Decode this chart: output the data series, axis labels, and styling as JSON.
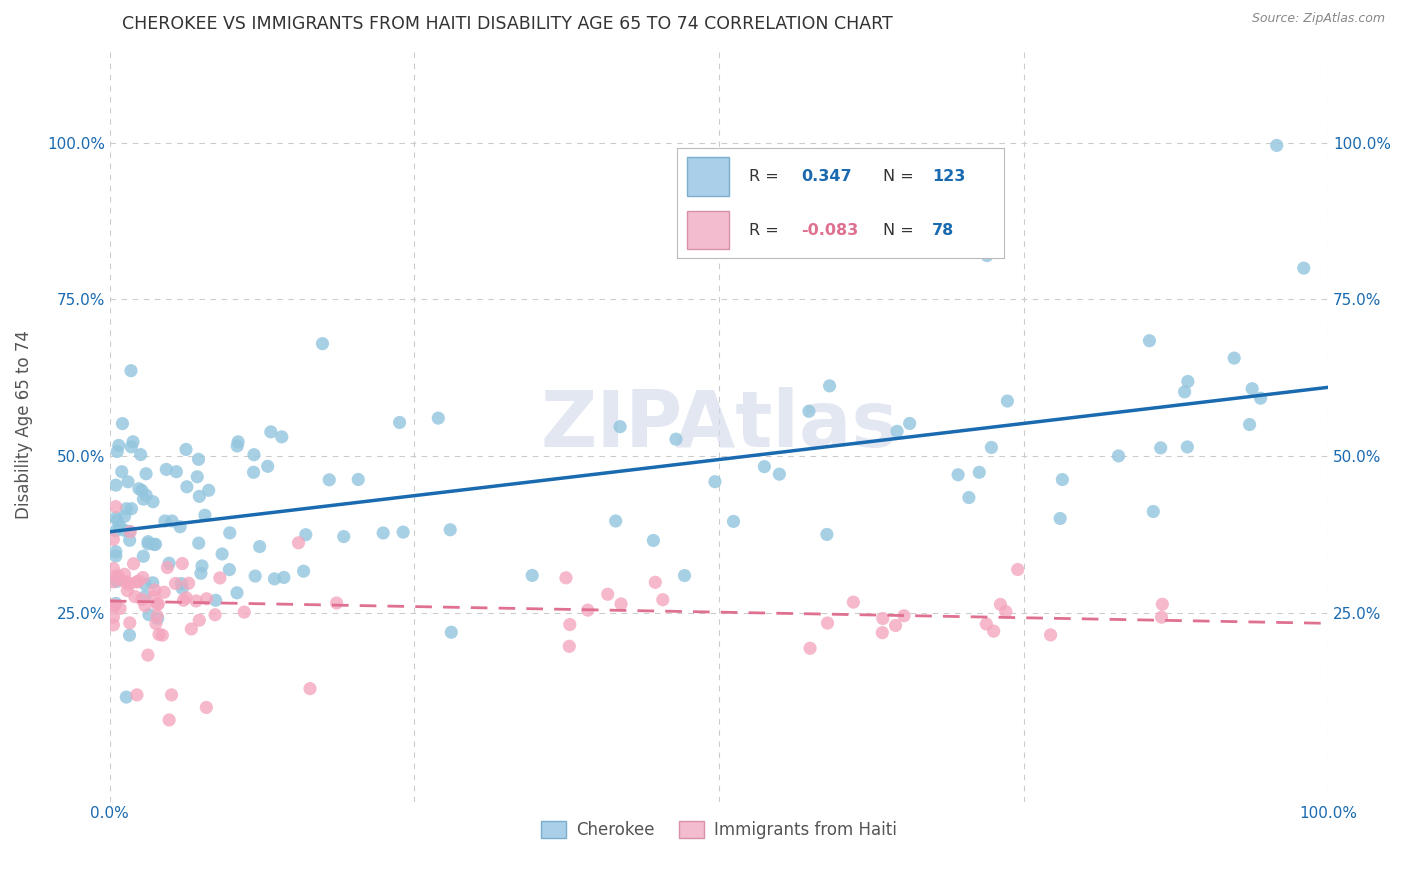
{
  "title": "CHEROKEE VS IMMIGRANTS FROM HAITI DISABILITY AGE 65 TO 74 CORRELATION CHART",
  "source": "Source: ZipAtlas.com",
  "ylabel": "Disability Age 65 to 74",
  "watermark": "ZIPAtlas",
  "cherokee_color": "#92c5de",
  "cherokee_line_color": "#1a6ab0",
  "haiti_color": "#f4a6be",
  "haiti_line_color": "#e07090",
  "legend_box_cherokee": "#aacfe8",
  "legend_box_haiti": "#f4bccf",
  "R_cherokee": 0.347,
  "N_cherokee": 123,
  "R_haiti": -0.083,
  "N_haiti": 78,
  "xlim": [
    0.0,
    1.0
  ],
  "ylim": [
    -0.05,
    1.15
  ],
  "bg_color": "#ffffff",
  "grid_color": "#cccccc",
  "title_color": "#333333",
  "legend_text_color": "#1a6ab0",
  "axis_label_color": "#555555",
  "tick_label_color": "#1a6ab0"
}
